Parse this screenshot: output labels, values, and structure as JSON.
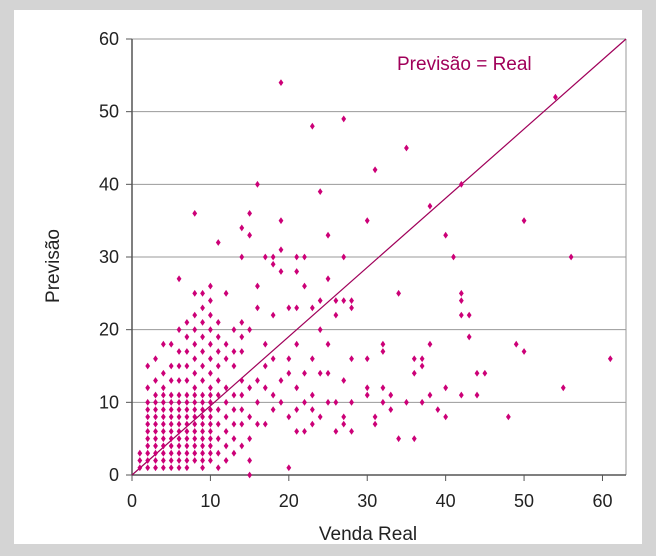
{
  "chart_data": {
    "type": "scatter",
    "title": "",
    "xlabel": "Venda Real",
    "ylabel": "Previsão",
    "xlim": [
      0,
      63
    ],
    "ylim": [
      0,
      60
    ],
    "xticks": [
      0,
      10,
      20,
      30,
      40,
      50,
      60
    ],
    "yticks": [
      0,
      10,
      20,
      30,
      40,
      50,
      60
    ],
    "grid": "horizontal",
    "legend": "none",
    "marker": "diamond",
    "marker_color": "#cc0077",
    "reference_line": {
      "label": "Previsão = Real",
      "from": [
        0,
        0
      ],
      "to": [
        63,
        60
      ],
      "color": "#a0005a"
    },
    "points": [
      [
        54,
        52
      ],
      [
        61,
        16
      ],
      [
        56,
        30
      ],
      [
        55,
        12
      ],
      [
        50,
        35
      ],
      [
        50,
        17
      ],
      [
        49,
        18
      ],
      [
        48,
        8
      ],
      [
        45,
        14
      ],
      [
        44,
        14
      ],
      [
        44,
        11
      ],
      [
        43,
        22
      ],
      [
        43,
        19
      ],
      [
        42,
        40
      ],
      [
        42,
        25
      ],
      [
        42,
        24
      ],
      [
        42,
        22
      ],
      [
        42,
        11
      ],
      [
        41,
        30
      ],
      [
        40,
        33
      ],
      [
        40,
        12
      ],
      [
        40,
        8
      ],
      [
        39,
        9
      ],
      [
        38,
        37
      ],
      [
        38,
        18
      ],
      [
        38,
        11
      ],
      [
        37,
        16
      ],
      [
        37,
        15
      ],
      [
        37,
        10
      ],
      [
        36,
        16
      ],
      [
        36,
        14
      ],
      [
        36,
        5
      ],
      [
        35,
        45
      ],
      [
        35,
        10
      ],
      [
        34,
        25
      ],
      [
        34,
        5
      ],
      [
        33,
        11
      ],
      [
        33,
        9
      ],
      [
        32,
        18
      ],
      [
        32,
        17
      ],
      [
        32,
        12
      ],
      [
        32,
        10
      ],
      [
        31,
        42
      ],
      [
        31,
        8
      ],
      [
        31,
        7
      ],
      [
        30,
        35
      ],
      [
        30,
        16
      ],
      [
        30,
        12
      ],
      [
        30,
        11
      ],
      [
        28,
        24
      ],
      [
        28,
        23
      ],
      [
        28,
        16
      ],
      [
        28,
        10
      ],
      [
        28,
        6
      ],
      [
        27,
        49
      ],
      [
        27,
        30
      ],
      [
        27,
        24
      ],
      [
        27,
        13
      ],
      [
        27,
        8
      ],
      [
        27,
        7
      ],
      [
        26,
        24
      ],
      [
        26,
        22
      ],
      [
        26,
        10
      ],
      [
        26,
        6
      ],
      [
        25,
        33
      ],
      [
        25,
        27
      ],
      [
        25,
        18
      ],
      [
        25,
        14
      ],
      [
        25,
        10
      ],
      [
        24,
        39
      ],
      [
        24,
        24
      ],
      [
        24,
        20
      ],
      [
        24,
        14
      ],
      [
        24,
        8
      ],
      [
        23,
        48
      ],
      [
        23,
        23
      ],
      [
        23,
        16
      ],
      [
        23,
        11
      ],
      [
        23,
        9
      ],
      [
        23,
        7
      ],
      [
        22,
        30
      ],
      [
        22,
        26
      ],
      [
        22,
        14
      ],
      [
        22,
        10
      ],
      [
        22,
        6
      ],
      [
        21,
        30
      ],
      [
        21,
        28
      ],
      [
        21,
        23
      ],
      [
        21,
        18
      ],
      [
        21,
        12
      ],
      [
        21,
        9
      ],
      [
        21,
        6
      ],
      [
        20,
        23
      ],
      [
        20,
        16
      ],
      [
        20,
        14
      ],
      [
        20,
        8
      ],
      [
        20,
        1
      ],
      [
        19,
        54
      ],
      [
        19,
        35
      ],
      [
        19,
        31
      ],
      [
        19,
        28
      ],
      [
        19,
        13
      ],
      [
        19,
        10
      ],
      [
        18,
        30
      ],
      [
        18,
        29
      ],
      [
        18,
        22
      ],
      [
        18,
        16
      ],
      [
        18,
        11
      ],
      [
        18,
        9
      ],
      [
        17,
        30
      ],
      [
        17,
        18
      ],
      [
        17,
        15
      ],
      [
        17,
        12
      ],
      [
        17,
        7
      ],
      [
        16,
        40
      ],
      [
        16,
        26
      ],
      [
        16,
        23
      ],
      [
        16,
        13
      ],
      [
        16,
        10
      ],
      [
        16,
        7
      ],
      [
        15,
        36
      ],
      [
        15,
        33
      ],
      [
        15,
        20
      ],
      [
        15,
        12
      ],
      [
        15,
        8
      ],
      [
        15,
        5
      ],
      [
        15,
        2
      ],
      [
        15,
        0
      ],
      [
        14,
        34
      ],
      [
        14,
        30
      ],
      [
        14,
        21
      ],
      [
        14,
        19
      ],
      [
        14,
        17
      ],
      [
        14,
        13
      ],
      [
        14,
        11
      ],
      [
        14,
        9
      ],
      [
        14,
        7
      ],
      [
        14,
        4
      ],
      [
        13,
        20
      ],
      [
        13,
        17
      ],
      [
        13,
        15
      ],
      [
        13,
        11
      ],
      [
        13,
        9
      ],
      [
        13,
        7
      ],
      [
        13,
        5
      ],
      [
        13,
        3
      ],
      [
        12,
        25
      ],
      [
        12,
        18
      ],
      [
        12,
        16
      ],
      [
        12,
        12
      ],
      [
        12,
        10
      ],
      [
        12,
        8
      ],
      [
        12,
        6
      ],
      [
        12,
        4
      ],
      [
        12,
        2
      ],
      [
        11,
        32
      ],
      [
        11,
        21
      ],
      [
        11,
        19
      ],
      [
        11,
        17
      ],
      [
        11,
        15
      ],
      [
        11,
        13
      ],
      [
        11,
        11
      ],
      [
        11,
        9
      ],
      [
        11,
        7
      ],
      [
        11,
        5
      ],
      [
        11,
        3
      ],
      [
        11,
        1
      ],
      [
        10,
        26
      ],
      [
        10,
        24
      ],
      [
        10,
        22
      ],
      [
        10,
        20
      ],
      [
        10,
        18
      ],
      [
        10,
        16
      ],
      [
        10,
        14
      ],
      [
        10,
        12
      ],
      [
        10,
        11
      ],
      [
        10,
        10
      ],
      [
        10,
        9
      ],
      [
        10,
        8
      ],
      [
        10,
        7
      ],
      [
        10,
        6
      ],
      [
        10,
        5
      ],
      [
        10,
        4
      ],
      [
        10,
        3
      ],
      [
        10,
        2
      ],
      [
        9,
        25
      ],
      [
        9,
        23
      ],
      [
        9,
        21
      ],
      [
        9,
        19
      ],
      [
        9,
        17
      ],
      [
        9,
        15
      ],
      [
        9,
        13
      ],
      [
        9,
        11
      ],
      [
        9,
        10
      ],
      [
        9,
        9
      ],
      [
        9,
        8
      ],
      [
        9,
        7
      ],
      [
        9,
        6
      ],
      [
        9,
        5
      ],
      [
        9,
        4
      ],
      [
        9,
        3
      ],
      [
        9,
        2
      ],
      [
        9,
        1
      ],
      [
        8,
        36
      ],
      [
        8,
        25
      ],
      [
        8,
        22
      ],
      [
        8,
        20
      ],
      [
        8,
        18
      ],
      [
        8,
        16
      ],
      [
        8,
        14
      ],
      [
        8,
        12
      ],
      [
        8,
        11
      ],
      [
        8,
        10
      ],
      [
        8,
        9
      ],
      [
        8,
        8
      ],
      [
        8,
        7
      ],
      [
        8,
        6
      ],
      [
        8,
        5
      ],
      [
        8,
        4
      ],
      [
        8,
        3
      ],
      [
        8,
        2
      ],
      [
        7,
        21
      ],
      [
        7,
        19
      ],
      [
        7,
        17
      ],
      [
        7,
        15
      ],
      [
        7,
        13
      ],
      [
        7,
        11
      ],
      [
        7,
        10
      ],
      [
        7,
        9
      ],
      [
        7,
        8
      ],
      [
        7,
        7
      ],
      [
        7,
        6
      ],
      [
        7,
        5
      ],
      [
        7,
        4
      ],
      [
        7,
        3
      ],
      [
        7,
        2
      ],
      [
        7,
        1
      ],
      [
        6,
        27
      ],
      [
        6,
        20
      ],
      [
        6,
        17
      ],
      [
        6,
        15
      ],
      [
        6,
        13
      ],
      [
        6,
        11
      ],
      [
        6,
        10
      ],
      [
        6,
        9
      ],
      [
        6,
        8
      ],
      [
        6,
        7
      ],
      [
        6,
        6
      ],
      [
        6,
        5
      ],
      [
        6,
        4
      ],
      [
        6,
        3
      ],
      [
        6,
        2
      ],
      [
        6,
        1
      ],
      [
        5,
        18
      ],
      [
        5,
        15
      ],
      [
        5,
        13
      ],
      [
        5,
        11
      ],
      [
        5,
        10
      ],
      [
        5,
        9
      ],
      [
        5,
        8
      ],
      [
        5,
        7
      ],
      [
        5,
        6
      ],
      [
        5,
        5
      ],
      [
        5,
        4
      ],
      [
        5,
        3
      ],
      [
        5,
        2
      ],
      [
        5,
        1
      ],
      [
        4,
        18
      ],
      [
        4,
        14
      ],
      [
        4,
        12
      ],
      [
        4,
        11
      ],
      [
        4,
        10
      ],
      [
        4,
        9
      ],
      [
        4,
        8
      ],
      [
        4,
        7
      ],
      [
        4,
        6
      ],
      [
        4,
        5
      ],
      [
        4,
        4
      ],
      [
        4,
        3
      ],
      [
        4,
        2
      ],
      [
        4,
        1
      ],
      [
        3,
        16
      ],
      [
        3,
        13
      ],
      [
        3,
        11
      ],
      [
        3,
        10
      ],
      [
        3,
        9
      ],
      [
        3,
        8
      ],
      [
        3,
        7
      ],
      [
        3,
        6
      ],
      [
        3,
        5
      ],
      [
        3,
        4
      ],
      [
        3,
        3
      ],
      [
        3,
        2
      ],
      [
        3,
        1
      ],
      [
        2,
        15
      ],
      [
        2,
        12
      ],
      [
        2,
        10
      ],
      [
        2,
        9
      ],
      [
        2,
        8
      ],
      [
        2,
        7
      ],
      [
        2,
        6
      ],
      [
        2,
        5
      ],
      [
        2,
        4
      ],
      [
        2,
        3
      ],
      [
        2,
        2
      ],
      [
        2,
        1
      ],
      [
        1,
        3
      ],
      [
        1,
        2
      ],
      [
        1,
        1
      ]
    ]
  }
}
